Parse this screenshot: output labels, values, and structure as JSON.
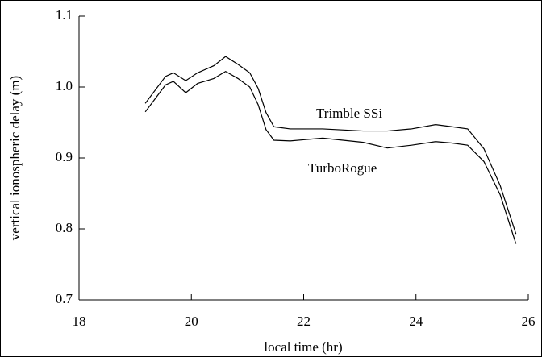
{
  "chart_data": {
    "type": "line",
    "xlabel": "local time (hr)",
    "ylabel": "vertical ionospheric delay (m)",
    "x": [
      19.18,
      19.54,
      19.68,
      19.9,
      20.11,
      20.4,
      20.61,
      20.83,
      21.04,
      21.19,
      21.33,
      21.47,
      21.76,
      22.34,
      23.06,
      23.49,
      23.92,
      24.35,
      24.64,
      24.92,
      25.21,
      25.5,
      25.78
    ],
    "series": [
      {
        "name": "Trimble SSi",
        "color": "#000000",
        "values": [
          0.977,
          1.015,
          1.02,
          1.009,
          1.02,
          1.03,
          1.043,
          1.032,
          1.02,
          0.998,
          0.964,
          0.944,
          0.941,
          0.941,
          0.938,
          0.938,
          0.941,
          0.947,
          0.944,
          0.941,
          0.913,
          0.861,
          0.793
        ]
      },
      {
        "name": "TurboRogue",
        "color": "#000000",
        "values": [
          0.965,
          1.003,
          1.008,
          0.992,
          1.005,
          1.012,
          1.022,
          1.012,
          1.0,
          0.975,
          0.94,
          0.925,
          0.924,
          0.928,
          0.922,
          0.914,
          0.918,
          0.923,
          0.921,
          0.918,
          0.895,
          0.848,
          0.779
        ]
      }
    ],
    "xlim": [
      18,
      26
    ],
    "xticks": [
      18,
      20,
      22,
      24,
      26
    ],
    "ylim": [
      0.7,
      1.1
    ],
    "yticks": [
      0.7,
      0.8,
      0.9,
      {
        "value": 1.0,
        "label": "1.0"
      },
      1.1
    ]
  }
}
